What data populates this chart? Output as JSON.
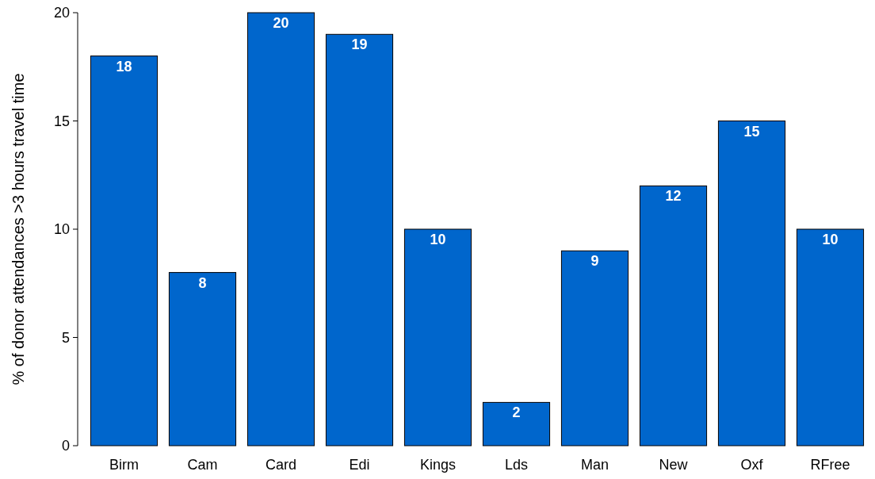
{
  "chart_data": {
    "type": "bar",
    "ylabel": "% of donor attendances >3 hours travel time",
    "categories": [
      "Birm",
      "Cam",
      "Card",
      "Edi",
      "Kings",
      "Lds",
      "Man",
      "New",
      "Oxf",
      "RFree"
    ],
    "values": [
      18,
      8,
      20,
      19,
      10,
      2,
      9,
      12,
      15,
      10
    ],
    "color": "#0066cc",
    "ylim": [
      0,
      20
    ],
    "yticks": [
      0,
      5,
      10,
      15,
      20
    ],
    "grid": false,
    "data_labels": true
  }
}
